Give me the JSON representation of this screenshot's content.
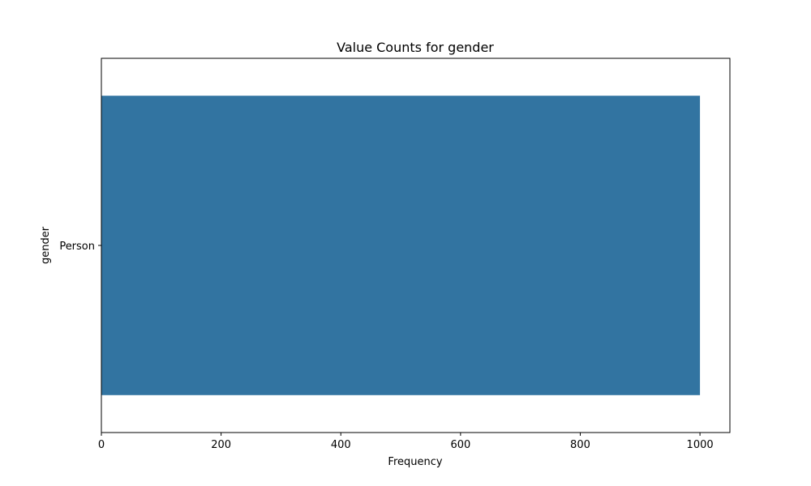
{
  "chart_data": {
    "type": "bar",
    "orientation": "horizontal",
    "title": "Value Counts for gender",
    "xlabel": "Frequency",
    "ylabel": "gender",
    "categories": [
      "Person"
    ],
    "values": [
      1000
    ],
    "xlim": [
      0,
      1050
    ],
    "xticks": [
      0,
      200,
      400,
      600,
      800,
      1000
    ],
    "grid": false,
    "legend": "none",
    "colors": {
      "bar": "#3274a1",
      "axes": "#000000",
      "background": "#ffffff"
    }
  }
}
